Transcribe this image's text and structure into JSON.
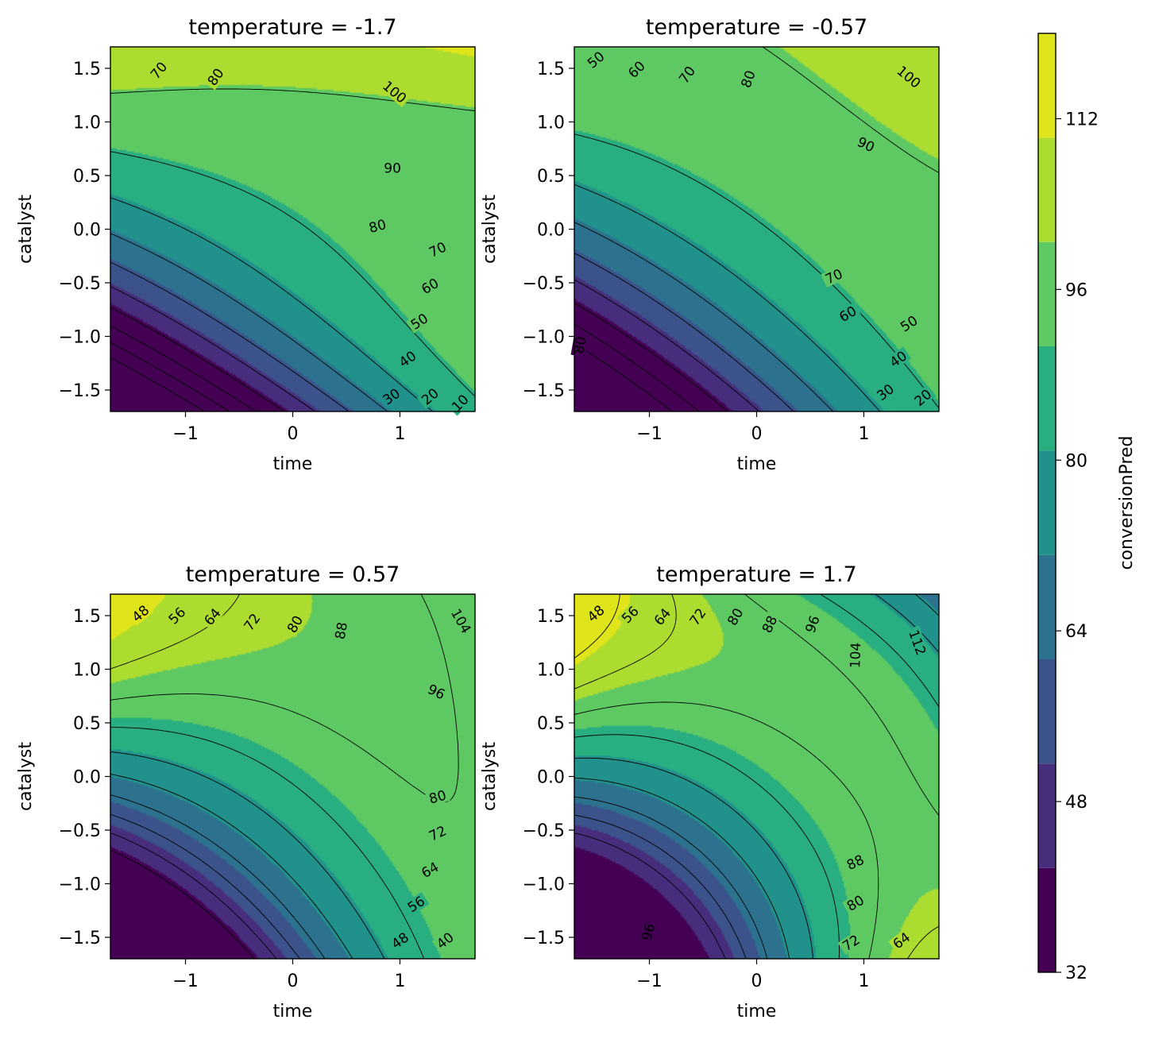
{
  "chart_data": [
    {
      "type": "contour",
      "title": "temperature = -1.7",
      "xlabel": "time",
      "ylabel": "catalyst",
      "xlim": [
        -1.7,
        1.7
      ],
      "ylim": [
        -1.7,
        1.7
      ],
      "xticks": [
        "−1",
        "0",
        "1"
      ],
      "yticks": [
        "1.5",
        "1.0",
        "0.5",
        "0.0",
        "−0.5",
        "−1.0",
        "−1.5"
      ],
      "temperature": -1.7,
      "contour_levels": [
        10,
        20,
        30,
        40,
        50,
        60,
        70,
        80,
        90,
        100
      ],
      "contour_labels": [
        {
          "text": "70",
          "x": -1.25,
          "y": 1.48,
          "rot": -50
        },
        {
          "text": "80",
          "x": -0.72,
          "y": 1.42,
          "rot": -55
        },
        {
          "text": "100",
          "x": 0.95,
          "y": 1.28,
          "rot": 40
        },
        {
          "text": "90",
          "x": 0.93,
          "y": 0.57,
          "rot": 0
        },
        {
          "text": "80",
          "x": 0.79,
          "y": 0.03,
          "rot": -15
        },
        {
          "text": "70",
          "x": 1.35,
          "y": -0.19,
          "rot": -25
        },
        {
          "text": "60",
          "x": 1.28,
          "y": -0.53,
          "rot": -30
        },
        {
          "text": "50",
          "x": 1.18,
          "y": -0.86,
          "rot": -33
        },
        {
          "text": "40",
          "x": 1.07,
          "y": -1.21,
          "rot": -35
        },
        {
          "text": "30",
          "x": 0.92,
          "y": -1.56,
          "rot": -35
        },
        {
          "text": "20",
          "x": 1.28,
          "y": -1.56,
          "rot": -40
        },
        {
          "text": "10",
          "x": 1.56,
          "y": -1.62,
          "rot": -45
        }
      ]
    },
    {
      "type": "contour",
      "title": "temperature = -0.57",
      "xlabel": "time",
      "ylabel": "catalyst",
      "xlim": [
        -1.7,
        1.7
      ],
      "ylim": [
        -1.7,
        1.7
      ],
      "xticks": [
        "−1",
        "0",
        "1"
      ],
      "yticks": [
        "1.5",
        "1.0",
        "0.5",
        "0.0",
        "−0.5",
        "−1.0",
        "−1.5"
      ],
      "temperature": -0.57,
      "contour_levels": [
        20,
        30,
        40,
        50,
        60,
        70,
        80,
        90,
        100
      ],
      "contour_labels": [
        {
          "text": "50",
          "x": -1.5,
          "y": 1.58,
          "rot": -40
        },
        {
          "text": "60",
          "x": -1.12,
          "y": 1.49,
          "rot": -45
        },
        {
          "text": "70",
          "x": -0.65,
          "y": 1.44,
          "rot": -55
        },
        {
          "text": "80",
          "x": -0.08,
          "y": 1.4,
          "rot": -70
        },
        {
          "text": "100",
          "x": 1.42,
          "y": 1.42,
          "rot": 40
        },
        {
          "text": "90",
          "x": 1.02,
          "y": 0.79,
          "rot": 25
        },
        {
          "text": "80",
          "x": -1.65,
          "y": -1.08,
          "rot": -80
        },
        {
          "text": "70",
          "x": 0.72,
          "y": -0.44,
          "rot": -25
        },
        {
          "text": "60",
          "x": 0.85,
          "y": -0.79,
          "rot": -30
        },
        {
          "text": "50",
          "x": 1.42,
          "y": -0.88,
          "rot": -33
        },
        {
          "text": "40",
          "x": 1.32,
          "y": -1.21,
          "rot": -35
        },
        {
          "text": "30",
          "x": 1.2,
          "y": -1.52,
          "rot": -37
        },
        {
          "text": "20",
          "x": 1.55,
          "y": -1.57,
          "rot": -40
        }
      ]
    },
    {
      "type": "contour",
      "title": "temperature = 0.57",
      "xlabel": "time",
      "ylabel": "catalyst",
      "xlim": [
        -1.7,
        1.7
      ],
      "ylim": [
        -1.7,
        1.7
      ],
      "xticks": [
        "−1",
        "0",
        "1"
      ],
      "yticks": [
        "1.5",
        "1.0",
        "0.5",
        "0.0",
        "−0.5",
        "−1.0",
        "−1.5"
      ],
      "temperature": 0.57,
      "contour_levels": [
        40,
        48,
        56,
        64,
        72,
        80,
        88,
        96,
        104
      ],
      "contour_labels": [
        {
          "text": "48",
          "x": -1.42,
          "y": 1.52,
          "rot": -40
        },
        {
          "text": "56",
          "x": -1.08,
          "y": 1.5,
          "rot": -45
        },
        {
          "text": "64",
          "x": -0.75,
          "y": 1.49,
          "rot": -50
        },
        {
          "text": "72",
          "x": -0.38,
          "y": 1.44,
          "rot": -55
        },
        {
          "text": "80",
          "x": 0.02,
          "y": 1.42,
          "rot": -60
        },
        {
          "text": "88",
          "x": 0.45,
          "y": 1.36,
          "rot": -80
        },
        {
          "text": "104",
          "x": 1.57,
          "y": 1.45,
          "rot": 60
        },
        {
          "text": "96",
          "x": 1.34,
          "y": 0.79,
          "rot": 25
        },
        {
          "text": "80",
          "x": 1.35,
          "y": -0.19,
          "rot": -15
        },
        {
          "text": "72",
          "x": 1.35,
          "y": -0.53,
          "rot": -25
        },
        {
          "text": "64",
          "x": 1.28,
          "y": -0.87,
          "rot": -30
        },
        {
          "text": "56",
          "x": 1.15,
          "y": -1.19,
          "rot": -33
        },
        {
          "text": "48",
          "x": 1.0,
          "y": -1.53,
          "rot": -35
        },
        {
          "text": "40",
          "x": 1.42,
          "y": -1.53,
          "rot": -38
        }
      ]
    },
    {
      "type": "contour",
      "title": "temperature = 1.7",
      "xlabel": "time",
      "ylabel": "catalyst",
      "xlim": [
        -1.7,
        1.7
      ],
      "ylim": [
        -1.7,
        1.7
      ],
      "xticks": [
        "−1",
        "0",
        "1"
      ],
      "yticks": [
        "1.5",
        "1.0",
        "0.5",
        "0.0",
        "−0.5",
        "−1.0",
        "−1.5"
      ],
      "temperature": 1.7,
      "contour_levels": [
        48,
        56,
        64,
        72,
        80,
        88,
        96,
        104,
        112
      ],
      "contour_labels": [
        {
          "text": "48",
          "x": -1.5,
          "y": 1.52,
          "rot": -40
        },
        {
          "text": "56",
          "x": -1.18,
          "y": 1.51,
          "rot": -45
        },
        {
          "text": "64",
          "x": -0.88,
          "y": 1.49,
          "rot": -50
        },
        {
          "text": "72",
          "x": -0.55,
          "y": 1.49,
          "rot": -55
        },
        {
          "text": "80",
          "x": -0.2,
          "y": 1.49,
          "rot": -60
        },
        {
          "text": "88",
          "x": 0.12,
          "y": 1.42,
          "rot": -65
        },
        {
          "text": "96",
          "x": 0.52,
          "y": 1.42,
          "rot": -70
        },
        {
          "text": "104",
          "x": 0.92,
          "y": 1.13,
          "rot": -88
        },
        {
          "text": "112",
          "x": 1.5,
          "y": 1.25,
          "rot": 70
        },
        {
          "text": "96",
          "x": -1.01,
          "y": -1.45,
          "rot": -75
        },
        {
          "text": "88",
          "x": 0.92,
          "y": -0.8,
          "rot": -25
        },
        {
          "text": "80",
          "x": 0.92,
          "y": -1.18,
          "rot": -30
        },
        {
          "text": "72",
          "x": 0.88,
          "y": -1.55,
          "rot": -33
        },
        {
          "text": "64",
          "x": 1.35,
          "y": -1.53,
          "rot": -37
        }
      ]
    }
  ],
  "colorbar": {
    "label": "conversionPred",
    "ticks": [
      "32",
      "48",
      "64",
      "80",
      "96",
      "112"
    ],
    "range": [
      32,
      120
    ],
    "colors": [
      "#440154",
      "#472d7b",
      "#3b528b",
      "#2c728e",
      "#21918c",
      "#28ae80",
      "#5ec962",
      "#addc30",
      "#e0e41a"
    ],
    "orientation": "vertical",
    "placement": "right"
  }
}
